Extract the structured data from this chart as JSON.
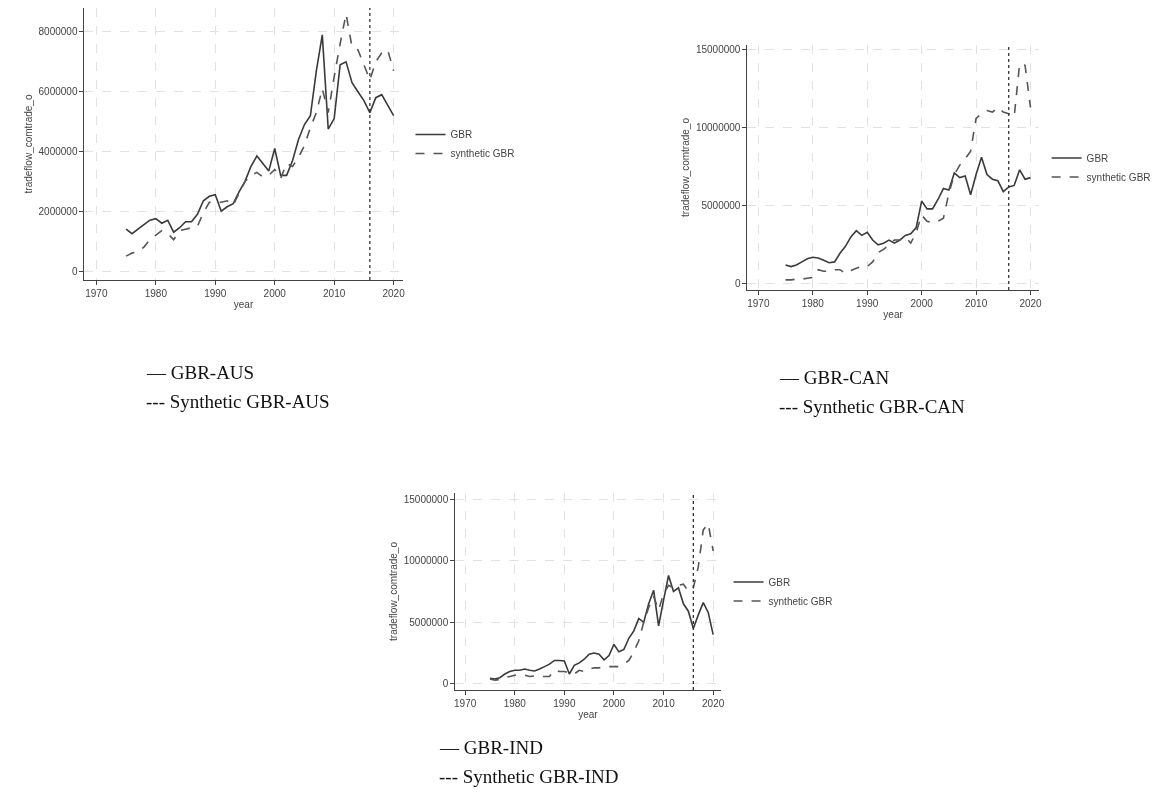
{
  "chart_data": [
    {
      "type": "line",
      "xlabel": "year",
      "ylabel": "tradeflow_comtrade_o",
      "x": [
        1975,
        1976,
        1977,
        1978,
        1979,
        1980,
        1981,
        1982,
        1983,
        1984,
        1985,
        1986,
        1987,
        1988,
        1989,
        1990,
        1991,
        1992,
        1993,
        1994,
        1995,
        1996,
        1997,
        1998,
        1999,
        2000,
        2001,
        2002,
        2003,
        2004,
        2005,
        2006,
        2007,
        2008,
        2009,
        2010,
        2011,
        2012,
        2013,
        2014,
        2015,
        2016,
        2017,
        2018,
        2019,
        2020
      ],
      "series": [
        {
          "name": "GBR",
          "color": "#3a3a3a",
          "line_style": "solid",
          "values": [
            1400000,
            1250000,
            1400000,
            1550000,
            1700000,
            1750000,
            1600000,
            1700000,
            1300000,
            1450000,
            1650000,
            1650000,
            1900000,
            2350000,
            2500000,
            2550000,
            2000000,
            2150000,
            2250000,
            2650000,
            3000000,
            3500000,
            3850000,
            3600000,
            3350000,
            4100000,
            3200000,
            3200000,
            3700000,
            4400000,
            4900000,
            5200000,
            6700000,
            7900000,
            4750000,
            5100000,
            6900000,
            7000000,
            6300000,
            6000000,
            5700000,
            5300000,
            5800000,
            5900000,
            5550000,
            5200000
          ]
        },
        {
          "name": "synthetic GBR",
          "color": "#555555",
          "line_style": "dashed",
          "values": [
            500000,
            600000,
            650000,
            800000,
            1050000,
            1200000,
            1350000,
            1250000,
            1050000,
            1350000,
            1400000,
            1450000,
            1500000,
            1950000,
            2300000,
            2300000,
            2300000,
            2350000,
            2200000,
            2600000,
            3000000,
            3200000,
            3300000,
            3150000,
            3200000,
            3400000,
            3100000,
            3600000,
            3500000,
            3800000,
            4200000,
            4800000,
            5300000,
            6100000,
            5300000,
            6500000,
            7600000,
            8600000,
            7500000,
            7400000,
            6900000,
            6400000,
            7000000,
            7300000,
            7400000,
            6700000
          ]
        }
      ],
      "xlim": [
        1968,
        2021.5
      ],
      "xticks": [
        1970,
        1980,
        1990,
        2000,
        2010,
        2020
      ],
      "ylim": [
        -300000,
        8800000
      ],
      "yticks": [
        0,
        2000000,
        4000000,
        6000000,
        8000000
      ],
      "grid": true,
      "legend": "right",
      "ref_lines": [
        {
          "axis": "x",
          "value": 2016,
          "line_style": "dotted"
        }
      ],
      "annotations": [
        "— GBR-AUS",
        "--- Synthetic GBR-AUS"
      ]
    },
    {
      "type": "line",
      "xlabel": "year",
      "ylabel": "tradeflow_comtrade_o",
      "x": [
        1975,
        1976,
        1977,
        1978,
        1979,
        1980,
        1981,
        1982,
        1983,
        1984,
        1985,
        1986,
        1987,
        1988,
        1989,
        1990,
        1991,
        1992,
        1993,
        1994,
        1995,
        1996,
        1997,
        1998,
        1999,
        2000,
        2001,
        2002,
        2003,
        2004,
        2005,
        2006,
        2007,
        2008,
        2009,
        2010,
        2011,
        2012,
        2013,
        2014,
        2015,
        2016,
        2017,
        2018,
        2019,
        2020
      ],
      "series": [
        {
          "name": "GBR",
          "color": "#3a3a3a",
          "line_style": "solid",
          "values": [
            1200000,
            1100000,
            1200000,
            1400000,
            1600000,
            1700000,
            1650000,
            1500000,
            1350000,
            1400000,
            1950000,
            2400000,
            3000000,
            3400000,
            3100000,
            3300000,
            2800000,
            2500000,
            2600000,
            2800000,
            2600000,
            2800000,
            3100000,
            3200000,
            3600000,
            5300000,
            4800000,
            4800000,
            5400000,
            6100000,
            6000000,
            7100000,
            6800000,
            6900000,
            5700000,
            7000000,
            8100000,
            7000000,
            6700000,
            6600000,
            5900000,
            6200000,
            6300000,
            7300000,
            6700000,
            6800000
          ]
        },
        {
          "name": "synthetic GBR",
          "color": "#555555",
          "line_style": "dashed",
          "values": [
            250000,
            250000,
            300000,
            300000,
            350000,
            400000,
            900000,
            800000,
            800000,
            900000,
            900000,
            650000,
            850000,
            1000000,
            1100000,
            1100000,
            1400000,
            2000000,
            2200000,
            2500000,
            2800000,
            2800000,
            3000000,
            2600000,
            3300000,
            4400000,
            4000000,
            3900000,
            4000000,
            4200000,
            5800000,
            7000000,
            7600000,
            8000000,
            8500000,
            10600000,
            10900000,
            11100000,
            11000000,
            11300000,
            11000000,
            10900000,
            10700000,
            14100000,
            14000000,
            11300000
          ]
        }
      ],
      "xlim": [
        1968,
        2021.5
      ],
      "xticks": [
        1970,
        1980,
        1990,
        2000,
        2010,
        2020
      ],
      "ylim": [
        -400000,
        15300000
      ],
      "yticks": [
        0,
        5000000,
        10000000,
        15000000
      ],
      "grid": true,
      "legend": "right",
      "ref_lines": [
        {
          "axis": "x",
          "value": 2016,
          "line_style": "dotted"
        }
      ],
      "annotations": [
        "— GBR-CAN",
        "--- Synthetic GBR-CAN"
      ]
    },
    {
      "type": "line",
      "xlabel": "year",
      "ylabel": "tradeflow_comtrade_o",
      "x": [
        1975,
        1976,
        1977,
        1978,
        1979,
        1980,
        1981,
        1982,
        1983,
        1984,
        1985,
        1986,
        1987,
        1988,
        1989,
        1990,
        1991,
        1992,
        1993,
        1994,
        1995,
        1996,
        1997,
        1998,
        1999,
        2000,
        2001,
        2002,
        2003,
        2004,
        2005,
        2006,
        2007,
        2008,
        2009,
        2010,
        2011,
        2012,
        2013,
        2014,
        2015,
        2016,
        2017,
        2018,
        2019,
        2020
      ],
      "series": [
        {
          "name": "GBR",
          "color": "#3a3a3a",
          "line_style": "solid",
          "values": [
            450000,
            400000,
            500000,
            800000,
            1000000,
            1100000,
            1100000,
            1200000,
            1100000,
            1050000,
            1200000,
            1400000,
            1600000,
            1900000,
            1900000,
            1850000,
            800000,
            1500000,
            1700000,
            2000000,
            2400000,
            2500000,
            2400000,
            1950000,
            2300000,
            3200000,
            2600000,
            2800000,
            3700000,
            4300000,
            5300000,
            5000000,
            6500000,
            7600000,
            4700000,
            6800000,
            8800000,
            7500000,
            7800000,
            6500000,
            5900000,
            4500000,
            5600000,
            6600000,
            5800000,
            4000000
          ]
        },
        {
          "name": "synthetic GBR",
          "color": "#555555",
          "line_style": "dashed",
          "values": [
            400000,
            300000,
            350000,
            500000,
            600000,
            700000,
            700000,
            700000,
            600000,
            650000,
            600000,
            600000,
            600000,
            1100000,
            1000000,
            1000000,
            900000,
            800000,
            1100000,
            1000000,
            1200000,
            1300000,
            1300000,
            1400000,
            1400000,
            1400000,
            1400000,
            1600000,
            1900000,
            2600000,
            3500000,
            5000000,
            6200000,
            7100000,
            6000000,
            7300000,
            8000000,
            7800000,
            8000000,
            8100000,
            7500000,
            7800000,
            9500000,
            12500000,
            13000000,
            10800000
          ]
        }
      ],
      "xlim": [
        1968,
        2021.5
      ],
      "xticks": [
        1970,
        1980,
        1990,
        2000,
        2010,
        2020
      ],
      "ylim": [
        -500000,
        15500000
      ],
      "yticks": [
        0,
        5000000,
        10000000,
        15000000
      ],
      "grid": true,
      "legend": "right",
      "ref_lines": [
        {
          "axis": "x",
          "value": 2016,
          "line_style": "dotted"
        }
      ],
      "annotations": [
        "— GBR-IND",
        "--- Synthetic GBR-IND"
      ]
    }
  ]
}
